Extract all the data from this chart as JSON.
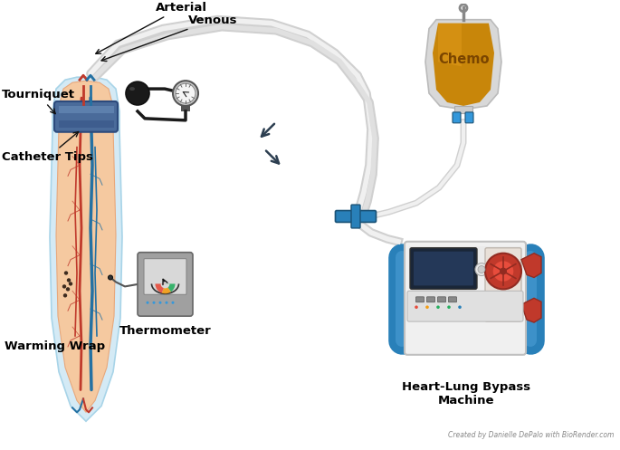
{
  "labels": {
    "arterial": "Arterial",
    "venous": "Venous",
    "tourniquet": "Tourniquet",
    "catheter_tips": "Catheter Tips",
    "thermometer": "Thermometer",
    "warming_wrap": "Warming Wrap",
    "chemo": "Chemo",
    "heart_lung": "Heart-Lung Bypass\nMachine",
    "credit": "Created by Danielle DePalo with BioRender.com"
  },
  "colors": {
    "background": "#ffffff",
    "skin": "#f5c9a0",
    "skin_shadow": "#e8a87c",
    "wrap": "#d4eaf5",
    "wrap_border": "#a8d4e8",
    "tourniquet": "#4a6b9a",
    "tourniquet_dark": "#2c4a7c",
    "tourniquet_light": "#6a8fba",
    "artery": "#c0392b",
    "vein": "#2471a3",
    "gauge_body": "#1a1a1a",
    "gauge_metal": "#888888",
    "gauge_face": "#f0f0f0",
    "therm_body": "#9a9a9a",
    "therm_screen": "#d8d8d8",
    "machine_white": "#f0f0f0",
    "machine_blue": "#2980b9",
    "machine_blue_light": "#5dade2",
    "machine_dark": "#1a5276",
    "machine_red": "#c0392b",
    "machine_red_dark": "#922b21",
    "machine_gray": "#b0b0b0",
    "chemo_amber": "#c8860a",
    "chemo_amber_light": "#e8a020",
    "chemo_clear": "#e8e8e8",
    "chemo_blue": "#3498db",
    "tube_outer": "#d0d0d0",
    "tube_inner": "#f0f0f0",
    "connector_blue": "#2980b9",
    "arrow_color": "#2c3e50",
    "label_color": "#000000",
    "credit_color": "#888888",
    "melanoma": "#3d2b1f"
  }
}
